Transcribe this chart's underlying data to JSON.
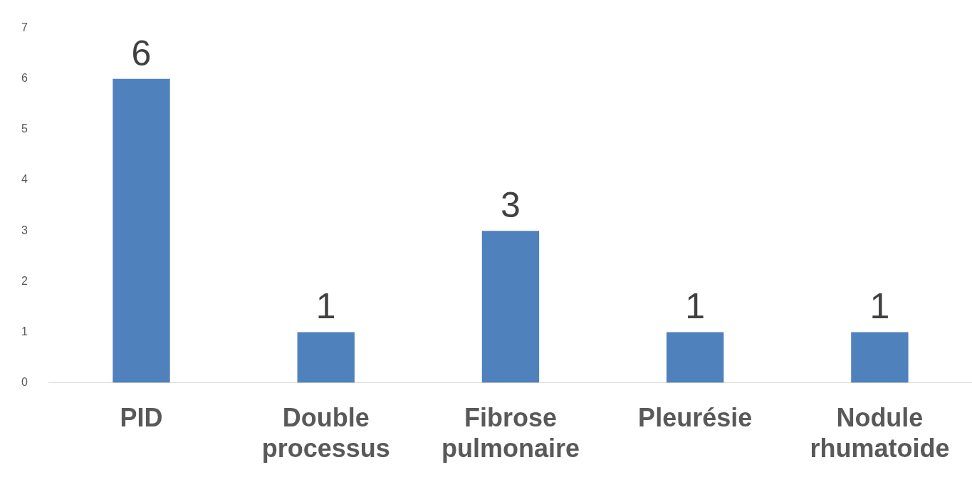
{
  "chart_data": {
    "type": "bar",
    "categories": [
      "PID",
      "Double processus",
      "Fibrose pulmonaire",
      "Pleurésie",
      "Nodule rhumatoide"
    ],
    "values": [
      6,
      1,
      3,
      1,
      1
    ],
    "color": "#4f81bd",
    "ylim": [
      0,
      7
    ],
    "yticks": [
      0,
      1,
      2,
      3,
      4,
      5,
      6,
      7
    ],
    "data_labels": true
  }
}
